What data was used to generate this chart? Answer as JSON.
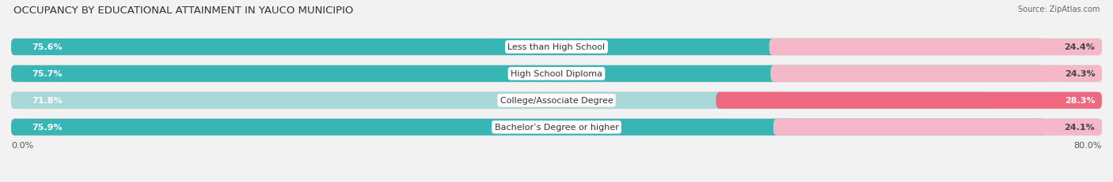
{
  "title": "OCCUPANCY BY EDUCATIONAL ATTAINMENT IN YAUCO MUNICIPIO",
  "source": "Source: ZipAtlas.com",
  "categories": [
    "Less than High School",
    "High School Diploma",
    "College/Associate Degree",
    "Bachelor’s Degree or higher"
  ],
  "owner_values": [
    75.6,
    75.7,
    71.8,
    75.9
  ],
  "renter_values": [
    24.4,
    24.3,
    28.3,
    24.1
  ],
  "owner_colors": [
    "#38b5b5",
    "#38b5b5",
    "#a8d8d8",
    "#38b5b5"
  ],
  "renter_colors": [
    "#f4b8c8",
    "#f4b8c8",
    "#f06880",
    "#f4b8c8"
  ],
  "x_axis_max": 80.0,
  "x_left_label": "0.0%",
  "x_right_label": "80.0%",
  "bar_height": 0.62,
  "bar_gap": 0.18,
  "owner_legend_color": "#38b5b5",
  "renter_legend_color": "#f4b8c8",
  "title_fontsize": 9.5,
  "bar_label_fontsize": 8,
  "cat_label_fontsize": 8,
  "tick_fontsize": 8,
  "source_fontsize": 7,
  "bg_color": "#f2f2f2",
  "bar_bg_color": "#e2e2e2",
  "owner_pct_color": "white",
  "renter_pct_dark": "white",
  "renter_pct_light": "#555555"
}
